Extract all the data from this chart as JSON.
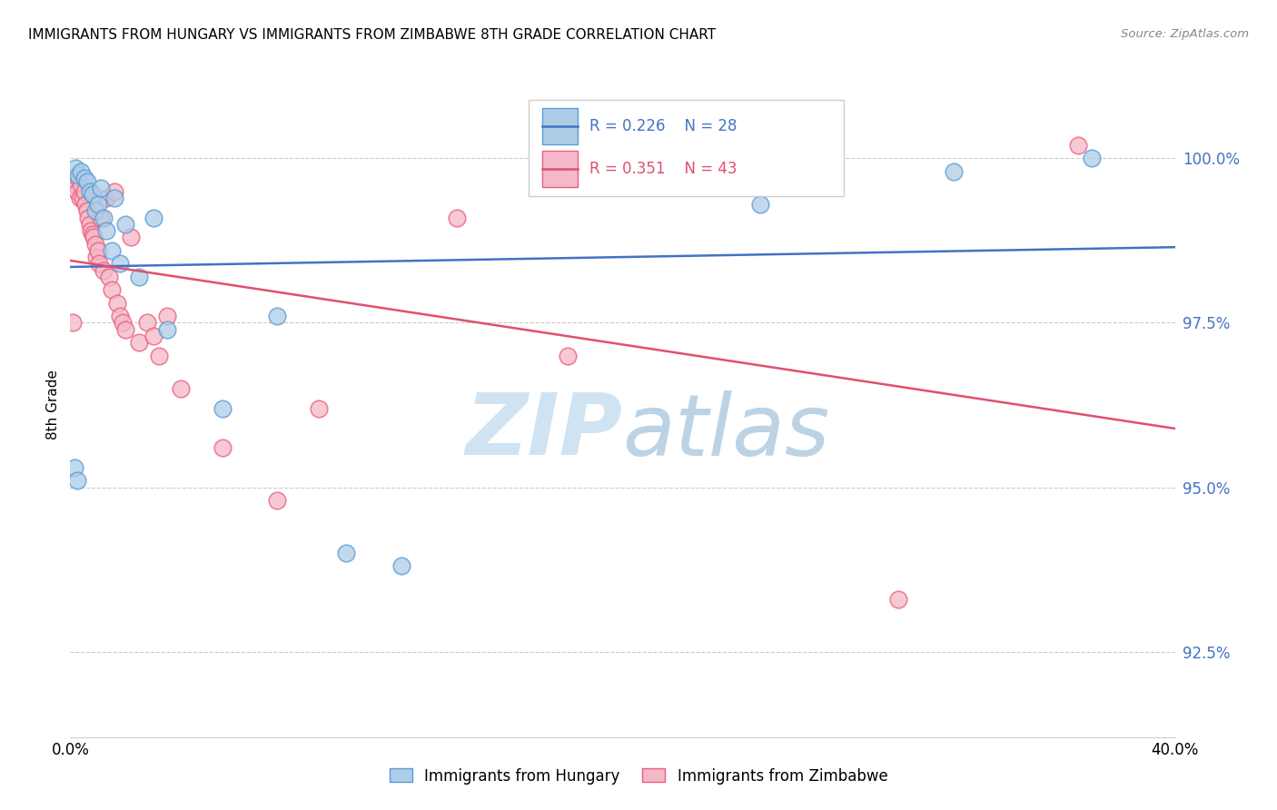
{
  "title": "IMMIGRANTS FROM HUNGARY VS IMMIGRANTS FROM ZIMBABWE 8TH GRADE CORRELATION CHART",
  "source": "Source: ZipAtlas.com",
  "ylabel": "8th Grade",
  "yticks": [
    92.5,
    95.0,
    97.5,
    100.0
  ],
  "ytick_labels": [
    "92.5%",
    "95.0%",
    "97.5%",
    "100.0%"
  ],
  "xlim": [
    0.0,
    40.0
  ],
  "ylim": [
    91.2,
    101.3
  ],
  "hungary_color": "#aecde8",
  "hungary_edge": "#5b9bd5",
  "zimbabwe_color": "#f5b8c8",
  "zimbabwe_edge": "#e8607a",
  "trend_hungary_color": "#4472c4",
  "trend_zimbabwe_color": "#e05070",
  "legend_R_hungary": "0.226",
  "legend_N_hungary": "28",
  "legend_R_zimbabwe": "0.351",
  "legend_N_zimbabwe": "43",
  "watermark_zip": "ZIP",
  "watermark_atlas": "atlas",
  "hungary_x": [
    0.2,
    0.3,
    0.4,
    0.5,
    0.6,
    0.7,
    0.8,
    0.9,
    1.0,
    1.1,
    1.2,
    1.3,
    1.5,
    1.8,
    2.5,
    3.5,
    5.5,
    7.5,
    10.0,
    25.0,
    37.0,
    0.15,
    0.25,
    1.6,
    2.0,
    3.0,
    12.0,
    32.0
  ],
  "hungary_y": [
    99.85,
    99.75,
    99.8,
    99.7,
    99.65,
    99.5,
    99.45,
    99.2,
    99.3,
    99.55,
    99.1,
    98.9,
    98.6,
    98.4,
    98.2,
    97.4,
    96.2,
    97.6,
    94.0,
    99.3,
    100.0,
    95.3,
    95.1,
    99.4,
    99.0,
    99.1,
    93.8,
    99.8
  ],
  "zimbabwe_x": [
    0.1,
    0.2,
    0.25,
    0.3,
    0.35,
    0.4,
    0.45,
    0.5,
    0.55,
    0.6,
    0.65,
    0.7,
    0.75,
    0.8,
    0.85,
    0.9,
    0.95,
    1.0,
    1.05,
    1.1,
    1.2,
    1.3,
    1.4,
    1.5,
    1.6,
    1.7,
    1.8,
    1.9,
    2.0,
    2.2,
    2.5,
    2.8,
    3.0,
    3.2,
    3.5,
    4.0,
    5.5,
    7.5,
    9.0,
    14.0,
    18.0,
    30.0,
    36.5
  ],
  "zimbabwe_y": [
    97.5,
    99.6,
    99.5,
    99.7,
    99.4,
    99.6,
    99.4,
    99.5,
    99.3,
    99.2,
    99.1,
    99.0,
    98.9,
    98.85,
    98.8,
    98.7,
    98.5,
    98.6,
    98.4,
    99.1,
    98.3,
    99.4,
    98.2,
    98.0,
    99.5,
    97.8,
    97.6,
    97.5,
    97.4,
    98.8,
    97.2,
    97.5,
    97.3,
    97.0,
    97.6,
    96.5,
    95.6,
    94.8,
    96.2,
    99.1,
    97.0,
    93.3,
    100.2
  ]
}
